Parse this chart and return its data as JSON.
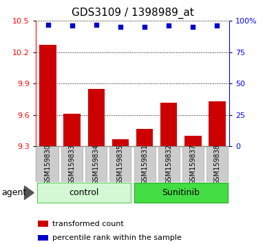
{
  "title": "GDS3109 / 1398989_at",
  "samples": [
    "GSM159830",
    "GSM159833",
    "GSM159834",
    "GSM159835",
    "GSM159831",
    "GSM159832",
    "GSM159837",
    "GSM159838"
  ],
  "bar_values": [
    10.27,
    9.61,
    9.85,
    9.37,
    9.47,
    9.72,
    9.4,
    9.73
  ],
  "dot_values": [
    97,
    96,
    97,
    95,
    95,
    96,
    95,
    96
  ],
  "ylim_left": [
    9.3,
    10.5
  ],
  "yticks_left": [
    9.3,
    9.6,
    9.9,
    10.2,
    10.5
  ],
  "yticks_right": [
    0,
    25,
    50,
    75,
    100
  ],
  "ylim_right": [
    0,
    100
  ],
  "bar_color": "#cc0000",
  "dot_color": "#0000cc",
  "bar_width": 0.7,
  "agent_label": "agent",
  "legend_bar_label": "transformed count",
  "legend_dot_label": "percentile rank within the sample",
  "title_fontsize": 11,
  "tick_fontsize": 8,
  "label_fontsize": 9,
  "group_label_fontsize": 9,
  "sample_label_fontsize": 7,
  "control_color_light": "#d4f7d4",
  "control_color_dark": "#55cc55",
  "sunitinib_color": "#44dd44",
  "gray_box": "#cccccc"
}
